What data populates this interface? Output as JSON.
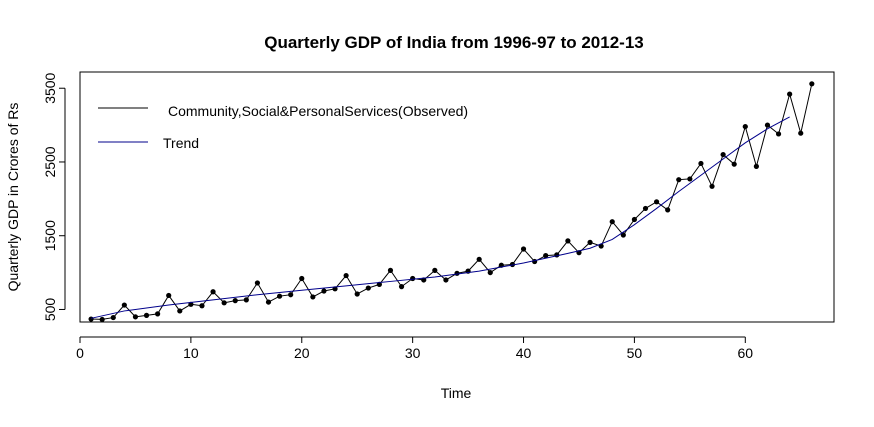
{
  "chart_data": {
    "type": "line",
    "title": "Quarterly GDP of India from 1996-97 to 2012-13",
    "xlabel": "Time",
    "ylabel": "Quarterly GDP in Crores of Rs",
    "xlim": [
      0,
      68
    ],
    "ylim": [
      330,
      3720
    ],
    "x_ticks": [
      0,
      10,
      20,
      30,
      40,
      50,
      60
    ],
    "y_ticks": [
      500,
      1500,
      2500,
      3500
    ],
    "grid": false,
    "legend_position": "top-left",
    "series": [
      {
        "name": "Community,Social&PersonalServices(Observed)",
        "color": "#000000",
        "markers": true,
        "x": [
          1,
          2,
          3,
          4,
          5,
          6,
          7,
          8,
          9,
          10,
          11,
          12,
          13,
          14,
          15,
          16,
          17,
          18,
          19,
          20,
          21,
          22,
          23,
          24,
          25,
          26,
          27,
          28,
          29,
          30,
          31,
          32,
          33,
          34,
          35,
          36,
          37,
          38,
          39,
          40,
          41,
          42,
          43,
          44,
          45,
          46,
          47,
          48,
          49,
          50,
          51,
          52,
          53,
          54,
          55,
          56,
          57,
          58,
          59,
          60,
          61,
          62,
          63,
          64,
          65,
          66
        ],
        "values": [
          370,
          365,
          390,
          560,
          400,
          420,
          440,
          690,
          480,
          570,
          550,
          740,
          590,
          620,
          630,
          860,
          600,
          680,
          700,
          920,
          670,
          750,
          780,
          960,
          710,
          790,
          840,
          1030,
          810,
          920,
          900,
          1030,
          900,
          990,
          1020,
          1180,
          1000,
          1100,
          1110,
          1320,
          1150,
          1230,
          1240,
          1430,
          1270,
          1410,
          1360,
          1690,
          1510,
          1720,
          1870,
          1960,
          1850,
          2260,
          2270,
          2480,
          2170,
          2600,
          2470,
          2980,
          2440,
          3000,
          2880,
          3420,
          2890,
          3560
        ]
      },
      {
        "name": "Trend",
        "color": "#00008b",
        "markers": false,
        "x": [
          1,
          4,
          8,
          12,
          16,
          20,
          24,
          28,
          32,
          36,
          40,
          44,
          46,
          48,
          50,
          52,
          54,
          56,
          58,
          60,
          62,
          64
        ],
        "values": [
          380,
          480,
          560,
          630,
          700,
          760,
          820,
          880,
          940,
          1020,
          1130,
          1260,
          1330,
          1450,
          1650,
          1870,
          2100,
          2320,
          2540,
          2760,
          2950,
          3110
        ]
      }
    ]
  }
}
